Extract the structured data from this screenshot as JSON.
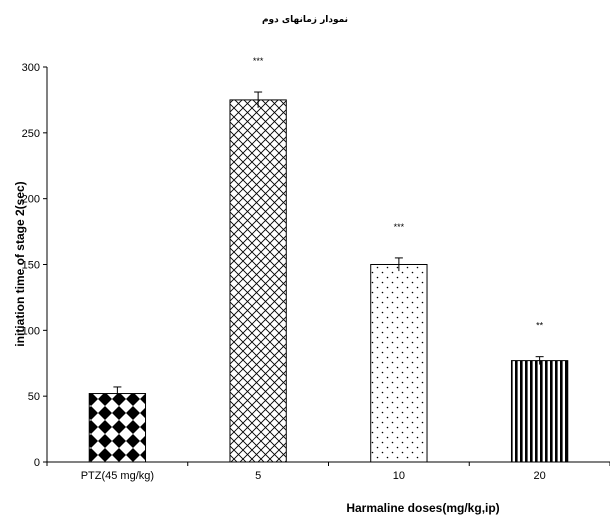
{
  "chart_data": {
    "type": "bar",
    "title": "نمودار زمانهای دوم",
    "xlabel": "Harmaline doses(mg/kg,ip)",
    "ylabel": "initiation time of stage 2(sec)",
    "categories": [
      "PTZ(45 mg/kg)",
      "5",
      "10",
      "20"
    ],
    "values": [
      52,
      275,
      150,
      77
    ],
    "errors": [
      5,
      6,
      5,
      3
    ],
    "significance": [
      "",
      "***",
      "***",
      "**"
    ],
    "patterns": [
      "checker-diamond",
      "crosshatch",
      "dots",
      "vertical-stripes"
    ],
    "ylim": [
      0,
      300
    ],
    "yticks": [
      0,
      50,
      100,
      150,
      200,
      250,
      300
    ],
    "grid": false,
    "legend": "none"
  }
}
